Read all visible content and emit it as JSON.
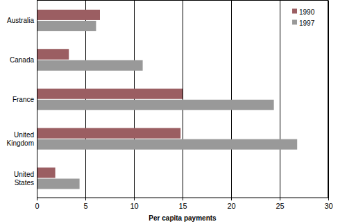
{
  "chart_data": {
    "type": "bar",
    "orientation": "horizontal",
    "categories": [
      "Australia",
      "Canada",
      "France",
      "United Kingdom",
      "United States"
    ],
    "series": [
      {
        "name": "1990",
        "color": "#9b5e62",
        "values": [
          6.5,
          3.3,
          15.0,
          14.8,
          1.9
        ]
      },
      {
        "name": "1997",
        "color": "#999999",
        "values": [
          6.1,
          10.9,
          24.4,
          26.8,
          4.4
        ]
      }
    ],
    "x_label": "Per capita payments",
    "xlim": [
      0,
      30
    ],
    "xticks": [
      0,
      5,
      10,
      15,
      20,
      25,
      30
    ],
    "grid": true,
    "legend": "top-right"
  }
}
